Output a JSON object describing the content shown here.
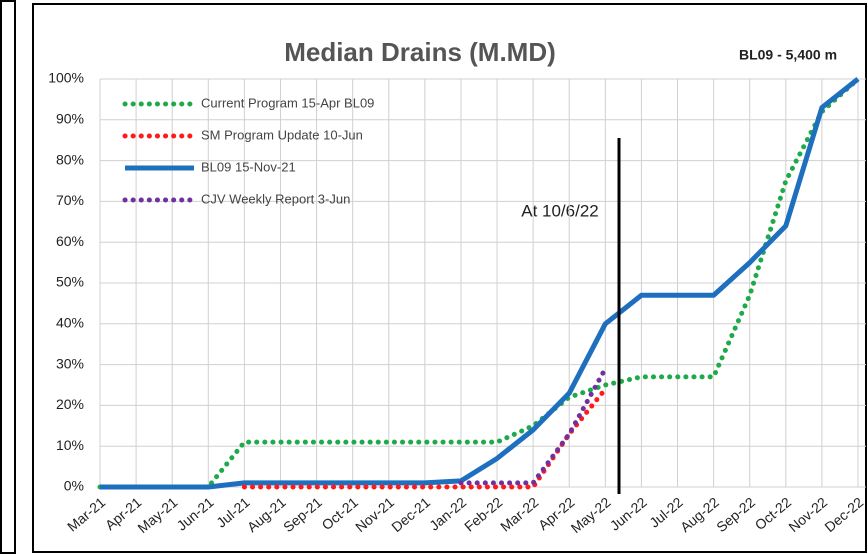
{
  "chart_data": {
    "type": "line",
    "title": "Median Drains (M.MD)",
    "subtitle": "BL09 - 5,400 m",
    "annotation": "At 10/6/22",
    "categories": [
      "Mar-21",
      "Apr-21",
      "May-21",
      "Jun-21",
      "Jul-21",
      "Aug-21",
      "Sep-21",
      "Oct-21",
      "Nov-21",
      "Dec-21",
      "Jan-22",
      "Feb-22",
      "Mar-22",
      "Apr-22",
      "May-22",
      "Jun-22",
      "Jul-22",
      "Aug-22",
      "Sep-22",
      "Oct-22",
      "Nov-22",
      "Dec-22"
    ],
    "series": [
      {
        "name": "Current Program 15-Apr BL09",
        "color": "#1faa4a",
        "style": "dotted",
        "values": [
          0,
          0,
          0,
          0,
          11,
          11,
          11,
          11,
          11,
          11,
          11,
          11,
          15,
          22,
          25,
          27,
          27,
          27,
          47,
          75,
          92,
          100
        ]
      },
      {
        "name": "SM Program Update 10-Jun",
        "color": "#ff1a1a",
        "style": "dotted",
        "values": [
          null,
          null,
          null,
          null,
          0,
          0,
          0,
          0,
          0,
          0,
          0,
          0,
          0,
          13,
          24,
          null,
          null,
          null,
          null,
          null,
          null,
          null
        ]
      },
      {
        "name": "BL09 15-Nov-21",
        "color": "#1f6fbf",
        "style": "solid",
        "values": [
          0,
          0,
          0,
          0,
          1,
          1,
          1,
          1,
          1,
          1,
          1.5,
          7,
          14,
          23,
          40,
          47,
          47,
          47,
          55,
          64,
          93,
          100
        ]
      },
      {
        "name": "CJV Weekly Report 3-Jun",
        "color": "#7030a0",
        "style": "dotted",
        "values": [
          null,
          null,
          null,
          null,
          null,
          null,
          null,
          null,
          null,
          null,
          1,
          1,
          1,
          13,
          29,
          null,
          null,
          null,
          null,
          null,
          null,
          null
        ]
      }
    ],
    "ylim": [
      0,
      100
    ],
    "yticks": [
      {
        "value": 0,
        "label": "0%"
      },
      {
        "value": 10,
        "label": "10%"
      },
      {
        "value": 20,
        "label": "20%"
      },
      {
        "value": 30,
        "label": "30%"
      },
      {
        "value": 40,
        "label": "40%"
      },
      {
        "value": 50,
        "label": "50%"
      },
      {
        "value": 60,
        "label": "60%"
      },
      {
        "value": 70,
        "label": "70%"
      },
      {
        "value": 80,
        "label": "80%"
      },
      {
        "value": 90,
        "label": "90%"
      },
      {
        "value": 100,
        "label": "100%"
      }
    ],
    "grid": true,
    "legend": "upper left"
  }
}
